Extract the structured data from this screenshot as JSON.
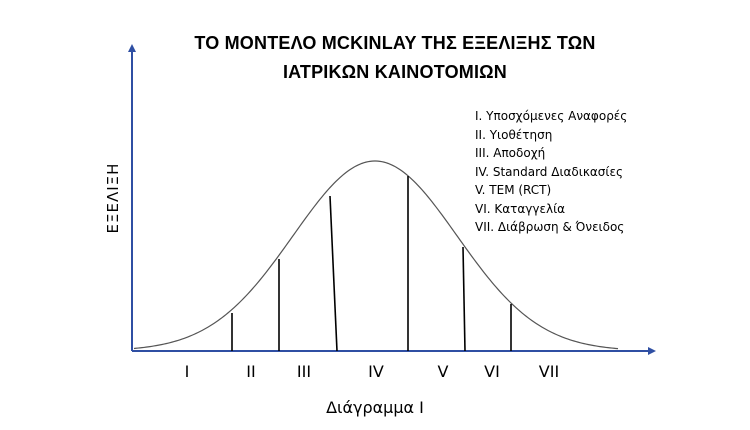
{
  "title": {
    "line1": "ΤΟ ΜΟΝΤΕΛΟ MCKINLAY ΤΗΣ ΕΞΕΛΙΞΗΣ ΤΩΝ",
    "line2": "ΙΑΤΡΙΚΩΝ ΚΑΙΝΟΤΟΜΙΩΝ"
  },
  "y_axis_label": "ΕΞΕΛΙΞΗ",
  "caption": "Διάγραμμα Ι",
  "legend": [
    "Ι. Υποσχόμενες Αναφορές",
    "ΙΙ. Υιοθέτηση",
    "ΙΙΙ. Αποδοχή",
    "IV. Standard Διαδικασίες",
    "V. TEM (RCT)",
    "VI. Καταγγελία",
    "VII. Διάβρωση & Όνειδος"
  ],
  "stages": [
    "I",
    "II",
    "III",
    "IV",
    "V",
    "VI",
    "VII"
  ],
  "colors": {
    "axis": "#2f4fa3",
    "curve": "#555555",
    "divider": "#000000",
    "text": "#000000"
  }
}
